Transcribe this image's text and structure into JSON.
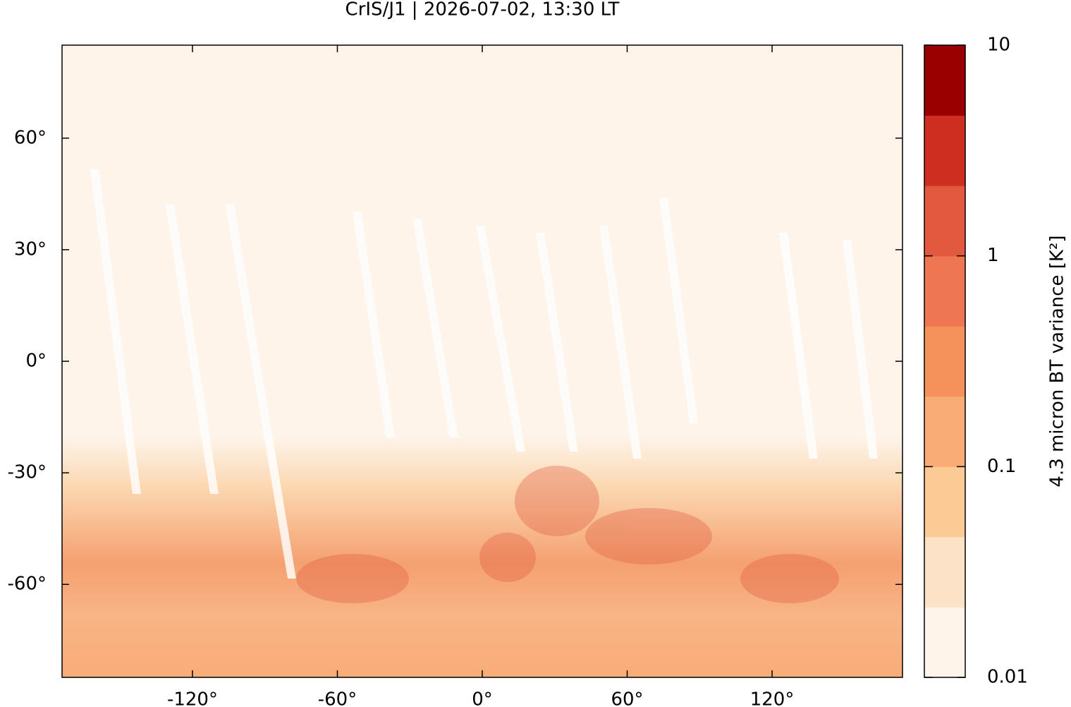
{
  "chart_data": {
    "type": "map",
    "title": "CrIS/J1 | 2026-07-02, 13:30 LT",
    "xlim": [
      -174,
      174
    ],
    "ylim": [
      -85,
      85
    ],
    "xticks": [
      {
        "value": -120,
        "label": "-120°"
      },
      {
        "value": -60,
        "label": "-60°"
      },
      {
        "value": 0,
        "label": "0°"
      },
      {
        "value": 60,
        "label": "60°"
      },
      {
        "value": 120,
        "label": "120°"
      }
    ],
    "yticks": [
      {
        "value": -60,
        "label": "-60°"
      },
      {
        "value": -30,
        "label": "-30°"
      },
      {
        "value": 0,
        "label": "0°"
      },
      {
        "value": 30,
        "label": "30°"
      },
      {
        "value": 60,
        "label": "60°"
      }
    ],
    "colorbar": {
      "label": "4.3 micron BT variance [K²]",
      "scale": "log",
      "lim": [
        0.01,
        10
      ],
      "ticks": [
        0.01,
        0.1,
        1,
        10
      ],
      "colors": [
        "#fef4ea",
        "#fce3c8",
        "#fbca95",
        "#f9ac73",
        "#f5925c",
        "#ee7652",
        "#e35940",
        "#ce2e20",
        "#990000"
      ]
    }
  }
}
